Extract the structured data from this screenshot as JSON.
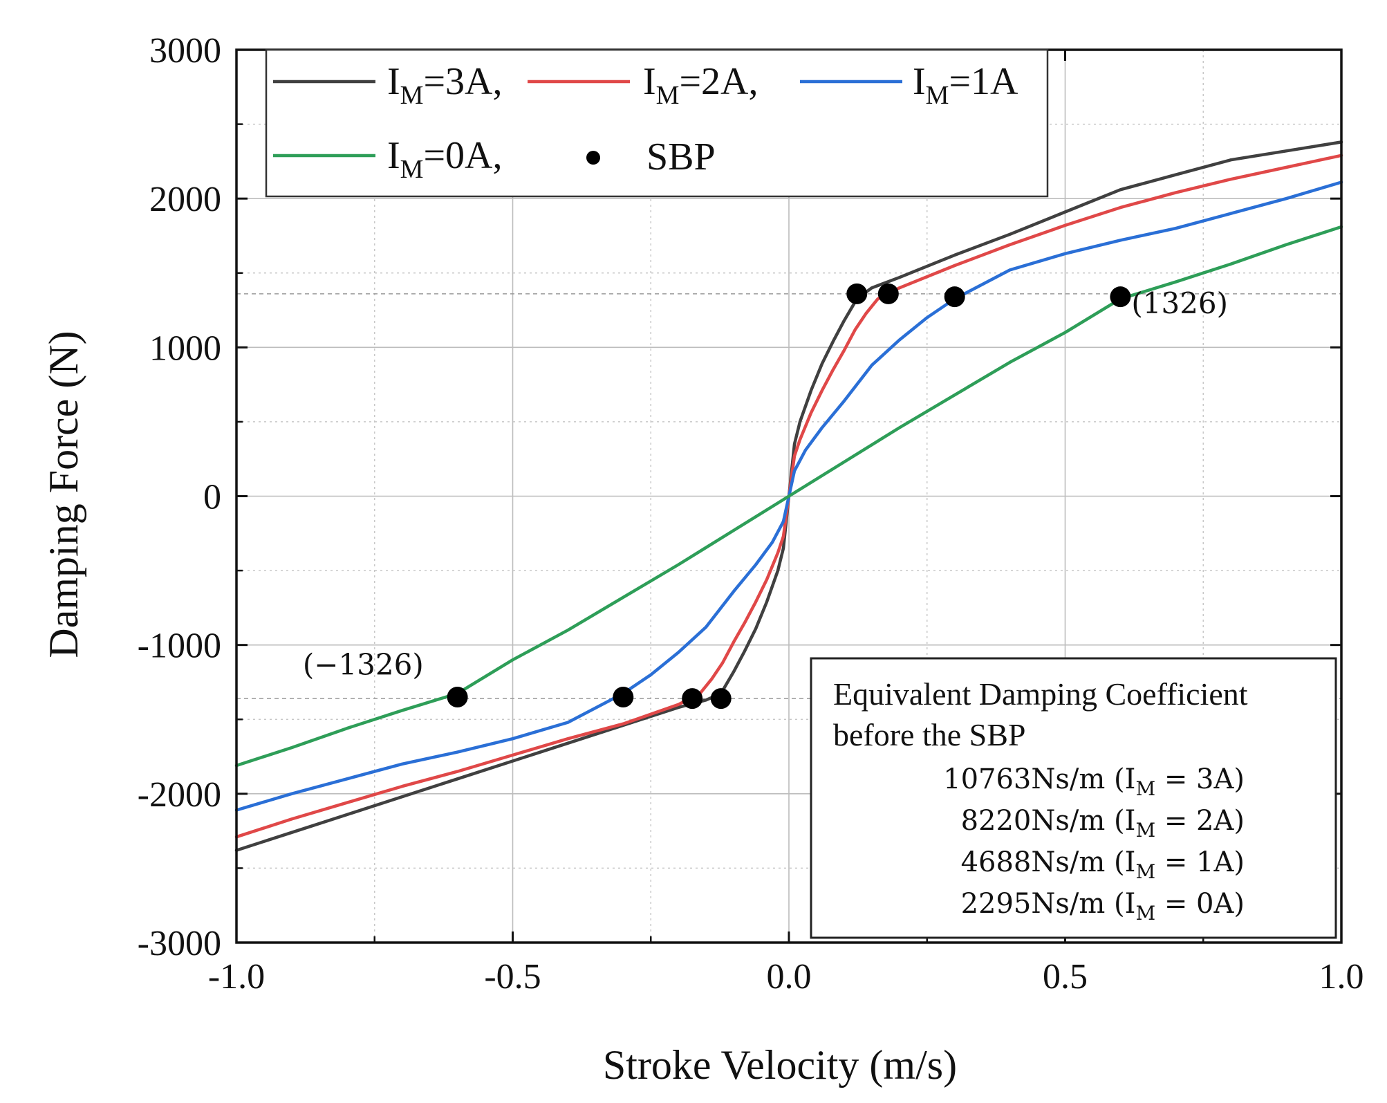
{
  "chart_data": {
    "type": "line",
    "title": "",
    "xlabel": "Stroke Velocity (m/s)",
    "ylabel": "Damping Force (N)",
    "xlim": [
      -1.0,
      1.0
    ],
    "ylim": [
      -3000,
      3000
    ],
    "xticks": [
      -1.0,
      -0.5,
      0.0,
      0.5,
      1.0
    ],
    "xtick_labels": [
      "-1.0",
      "-0.5",
      "0.0",
      "0.5",
      "1.0"
    ],
    "yticks": [
      -3000,
      -2000,
      -1000,
      0,
      1000,
      2000,
      3000
    ],
    "ytick_labels": [
      "-3000",
      "-2000",
      "-1000",
      "0",
      "1000",
      "2000",
      "3000"
    ],
    "grid": true,
    "legend_position": "top-left",
    "series": [
      {
        "name": "3A",
        "color": "#404040",
        "x": [
          -1.0,
          -0.9,
          -0.8,
          -0.7,
          -0.6,
          -0.5,
          -0.4,
          -0.3,
          -0.2,
          -0.15,
          -0.123,
          -0.1,
          -0.08,
          -0.06,
          -0.04,
          -0.02,
          -0.01,
          0.0,
          0.01,
          0.02,
          0.04,
          0.06,
          0.08,
          0.1,
          0.123,
          0.15,
          0.2,
          0.3,
          0.4,
          0.5,
          0.6,
          0.7,
          0.8,
          0.9,
          1.0
        ],
        "y": [
          -2380,
          -2260,
          -2140,
          -2020,
          -1900,
          -1780,
          -1660,
          -1540,
          -1420,
          -1370,
          -1326,
          -1180,
          -1040,
          -890,
          -710,
          -500,
          -350,
          0,
          350,
          500,
          710,
          890,
          1040,
          1180,
          1326,
          1400,
          1470,
          1620,
          1760,
          1910,
          2060,
          2160,
          2260,
          2320,
          2380
        ]
      },
      {
        "name": "2A",
        "color": "#e04848",
        "x": [
          -1.0,
          -0.9,
          -0.8,
          -0.7,
          -0.6,
          -0.5,
          -0.4,
          -0.3,
          -0.2,
          -0.161,
          -0.14,
          -0.12,
          -0.1,
          -0.08,
          -0.06,
          -0.04,
          -0.02,
          -0.01,
          0.0,
          0.01,
          0.02,
          0.04,
          0.06,
          0.08,
          0.1,
          0.12,
          0.14,
          0.161,
          0.2,
          0.3,
          0.4,
          0.5,
          0.6,
          0.7,
          0.8,
          0.9,
          1.0
        ],
        "y": [
          -2290,
          -2170,
          -2060,
          -1950,
          -1850,
          -1740,
          -1630,
          -1530,
          -1400,
          -1326,
          -1230,
          -1120,
          -980,
          -850,
          -710,
          -560,
          -380,
          -270,
          0,
          270,
          380,
          560,
          710,
          850,
          980,
          1120,
          1230,
          1326,
          1400,
          1550,
          1690,
          1820,
          1940,
          2040,
          2130,
          2210,
          2290
        ]
      },
      {
        "name": "1A",
        "color": "#2a6fd6",
        "x": [
          -1.0,
          -0.9,
          -0.8,
          -0.7,
          -0.6,
          -0.5,
          -0.4,
          -0.3,
          -0.25,
          -0.2,
          -0.15,
          -0.1,
          -0.06,
          -0.03,
          -0.01,
          0.0,
          0.01,
          0.03,
          0.06,
          0.1,
          0.15,
          0.2,
          0.25,
          0.3,
          0.4,
          0.5,
          0.6,
          0.7,
          0.8,
          0.9,
          1.0
        ],
        "y": [
          -2110,
          -2000,
          -1900,
          -1800,
          -1720,
          -1630,
          -1520,
          -1326,
          -1200,
          -1050,
          -880,
          -640,
          -460,
          -310,
          -170,
          0,
          170,
          310,
          460,
          640,
          880,
          1050,
          1200,
          1326,
          1520,
          1630,
          1720,
          1800,
          1900,
          2000,
          2110
        ]
      },
      {
        "name": "0A",
        "color": "#2e9e58",
        "x": [
          -1.0,
          -0.9,
          -0.8,
          -0.7,
          -0.6,
          -0.5,
          -0.4,
          -0.3,
          -0.2,
          -0.1,
          0.0,
          0.1,
          0.2,
          0.3,
          0.4,
          0.5,
          0.6,
          0.7,
          0.8,
          0.9,
          1.0
        ],
        "y": [
          -1810,
          -1690,
          -1560,
          -1440,
          -1326,
          -1100,
          -900,
          -680,
          -460,
          -230,
          0,
          230,
          460,
          680,
          900,
          1100,
          1326,
          1440,
          1560,
          1690,
          1810
        ]
      }
    ],
    "sbp_points": {
      "name": "SBP",
      "color": "#000000",
      "x": [
        0.123,
        0.18,
        0.3,
        0.6,
        -0.123,
        -0.175,
        -0.3,
        -0.6
      ],
      "y": [
        1360,
        1360,
        1340,
        1340,
        -1360,
        -1360,
        -1350,
        -1350
      ]
    },
    "reference_lines_y": [
      1360,
      -1360
    ],
    "annotations": [
      {
        "text": "(1326)",
        "x": 0.62,
        "y": 1230
      },
      {
        "text": "(−1326)",
        "x": -0.88,
        "y": -1200
      }
    ],
    "legend": {
      "prefix": "I",
      "subscript": "M",
      "separator": ",",
      "items": [
        {
          "value": "=3A",
          "color": "#404040",
          "trailing": ","
        },
        {
          "value": "=2A",
          "color": "#e04848",
          "trailing": ","
        },
        {
          "value": "=1A",
          "color": "#2a6fd6",
          "trailing": ""
        },
        {
          "value": "=0A",
          "color": "#2e9e58",
          "trailing": ","
        }
      ],
      "sbp_label": "SBP"
    },
    "info_box": {
      "title_line1": "Equivalent Damping Coefficient",
      "title_line2": "before the SBP",
      "rows": [
        {
          "value": "10763Ns/m",
          "current": "3A"
        },
        {
          "value": "8220Ns/m",
          "current": "2A"
        },
        {
          "value": "4688Ns/m",
          "current": "1A"
        },
        {
          "value": "2295Ns/m",
          "current": "0A"
        }
      ],
      "row_prefix": "(I",
      "row_subscript": "M",
      "row_equals": " = ",
      "row_suffix": ")"
    }
  }
}
